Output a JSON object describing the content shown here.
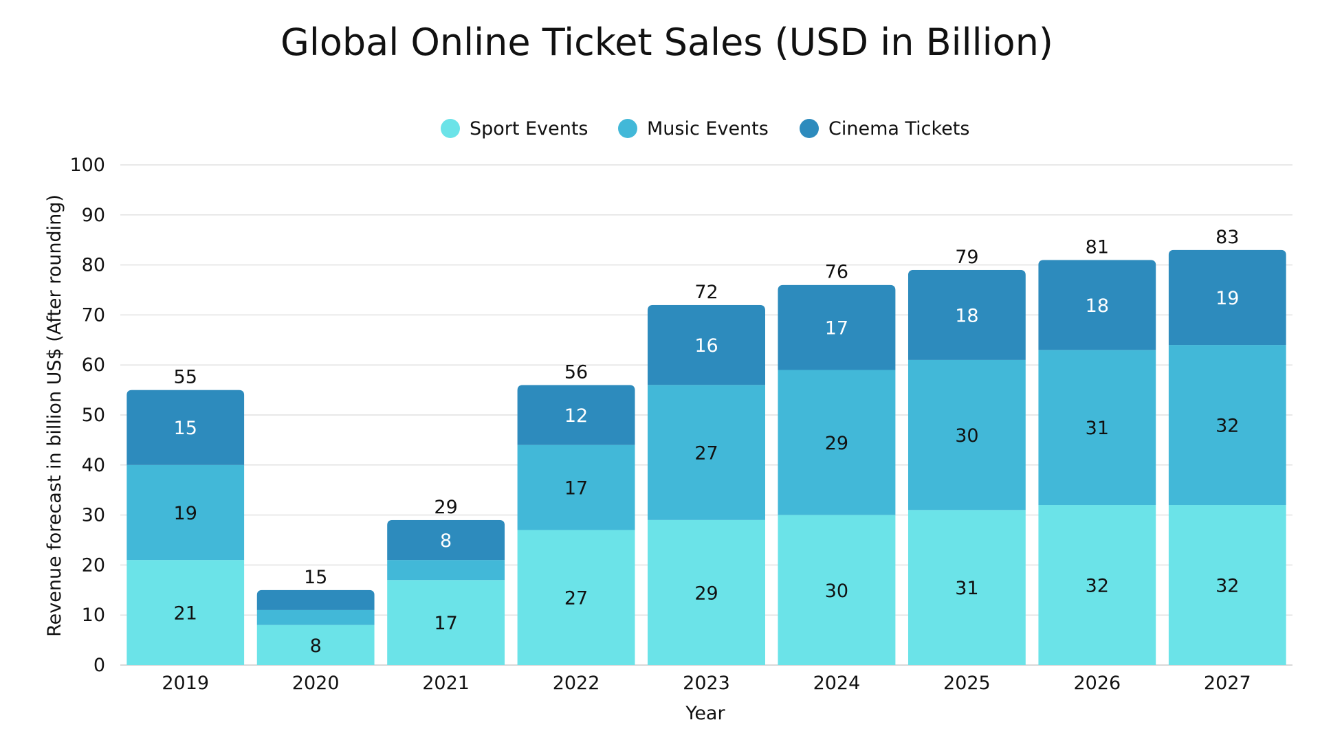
{
  "chart_data": {
    "type": "bar",
    "stacked": true,
    "title": "Global Online Ticket Sales (USD in Billion)",
    "xlabel": "Year",
    "ylabel": "Revenue forecast in billion US$ (After rounding)",
    "categories": [
      "2019",
      "2020",
      "2021",
      "2022",
      "2023",
      "2024",
      "2025",
      "2026",
      "2027"
    ],
    "series": [
      {
        "name": "Sport Events",
        "color": "#6be3e8",
        "values": [
          21,
          8,
          17,
          27,
          29,
          30,
          31,
          32,
          32
        ],
        "labels": [
          "21",
          "8",
          "17",
          "27",
          "29",
          "30",
          "31",
          "32",
          "32"
        ],
        "label_color": "#111111"
      },
      {
        "name": "Music Events",
        "color": "#42b8d8",
        "values": [
          19,
          3,
          4,
          17,
          27,
          29,
          30,
          31,
          32
        ],
        "labels": [
          "19",
          "",
          "",
          "17",
          "27",
          "29",
          "30",
          "31",
          "32"
        ],
        "label_color": "#111111"
      },
      {
        "name": "Cinema Tickets",
        "color": "#2d8bbd",
        "values": [
          15,
          4,
          8,
          12,
          16,
          17,
          18,
          18,
          19
        ],
        "labels": [
          "15",
          "",
          "8",
          "12",
          "16",
          "17",
          "18",
          "18",
          "19"
        ],
        "label_color": "#ffffff"
      }
    ],
    "totals": [
      55,
      15,
      29,
      56,
      72,
      76,
      79,
      81,
      83
    ],
    "total_labels": [
      "55",
      "15",
      "29",
      "56",
      "72",
      "76",
      "79",
      "81",
      "83"
    ],
    "ylim": [
      0,
      100
    ],
    "yticks": [
      0,
      10,
      20,
      30,
      40,
      50,
      60,
      70,
      80,
      90,
      100
    ],
    "ytick_labels": [
      "0",
      "10",
      "20",
      "30",
      "40",
      "50",
      "60",
      "70",
      "80",
      "90",
      "100"
    ],
    "grid": true,
    "legend_position": "top-center"
  }
}
